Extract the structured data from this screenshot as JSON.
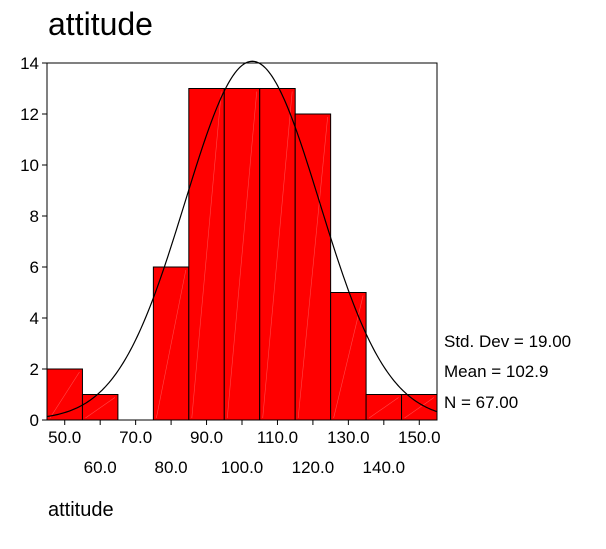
{
  "chart_data": {
    "type": "bar",
    "title": "attitude",
    "xlabel": "attitude",
    "ylabel": "",
    "categories": [
      "50.0",
      "60.0",
      "70.0",
      "80.0",
      "90.0",
      "100.0",
      "110.0",
      "120.0",
      "130.0",
      "140.0",
      "150.0"
    ],
    "bin_centers": [
      50,
      60,
      70,
      80,
      90,
      100,
      110,
      120,
      130,
      140,
      150
    ],
    "bin_width": 10,
    "values": [
      2,
      1,
      0,
      6,
      13,
      13,
      13,
      12,
      5,
      1,
      1
    ],
    "xlim": [
      45,
      155
    ],
    "ylim": [
      0,
      14
    ],
    "y_ticks": [
      0,
      2,
      4,
      6,
      8,
      10,
      12,
      14
    ],
    "x_tick_labels_row1": [
      "50.0",
      "70.0",
      "90.0",
      "110.0",
      "130.0",
      "150.0"
    ],
    "x_tick_labels_row2": [
      "60.0",
      "80.0",
      "100.0",
      "120.0",
      "140.0"
    ],
    "normal_curve": {
      "mean": 102.9,
      "std": 19.0,
      "n": 67
    },
    "stats": {
      "std_dev": "Std. Dev = 19.00",
      "mean": "Mean = 102.9",
      "n": "N = 67.00"
    },
    "colors": {
      "bar_fill": "#ff0000",
      "bar_stroke": "#000000",
      "curve": "#000000",
      "axis": "#000000"
    },
    "grid": false
  }
}
